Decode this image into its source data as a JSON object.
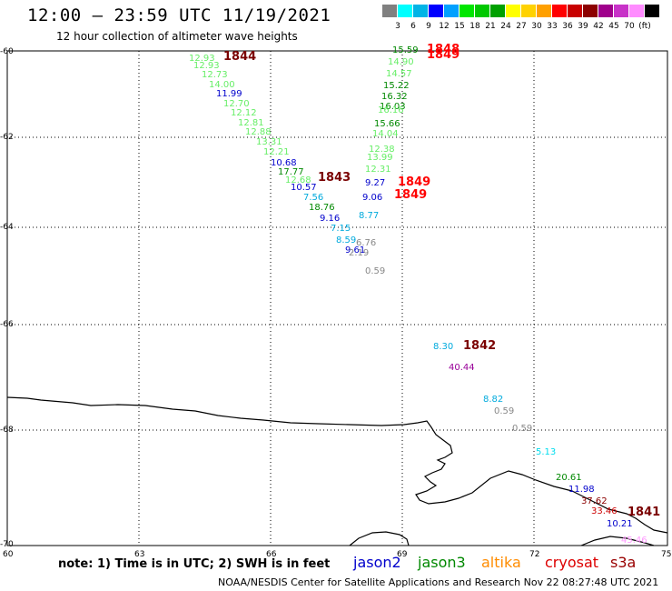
{
  "header": {
    "title": "12:00 — 23:59 UTC 11/19/2021",
    "subtitle": "12 hour collection of altimeter wave heights"
  },
  "colorbar": {
    "colors": [
      "#808080",
      "#00ffff",
      "#00b4e6",
      "#0000ff",
      "#00a0ff",
      "#00e600",
      "#00c800",
      "#00a000",
      "#ffff00",
      "#ffd200",
      "#ffa000",
      "#ff0000",
      "#c80000",
      "#8c0000",
      "#a0008c",
      "#c832c8",
      "#ff8cff",
      "#000000"
    ],
    "labels": [
      "3",
      "6",
      "9",
      "12",
      "15",
      "18",
      "21",
      "24",
      "27",
      "30",
      "33",
      "36",
      "39",
      "42",
      "45",
      "70",
      "(ft)"
    ]
  },
  "axes": {
    "lat_labels": [
      "-60",
      "-62",
      "-64",
      "-66",
      "-68",
      "-70"
    ],
    "lon_labels": [
      "60",
      "63",
      "66",
      "69",
      "72",
      "75"
    ]
  },
  "orbits": [
    {
      "label": "1844",
      "color": "#7a0000"
    },
    {
      "label": "1843",
      "color": "#7a0000"
    },
    {
      "label": "1848",
      "color": "#ff0000"
    },
    {
      "label": "1849",
      "color": "#ff0000"
    },
    {
      "label": "1849",
      "color": "#ff0000"
    },
    {
      "label": "1849",
      "color": "#ff0000"
    },
    {
      "label": "1842",
      "color": "#7a0000"
    },
    {
      "label": "1841",
      "color": "#7a0000"
    }
  ],
  "values": [
    {
      "t": "12.93",
      "c": "#66ee66"
    },
    {
      "t": "12.93",
      "c": "#66ee66"
    },
    {
      "t": "12.73",
      "c": "#66ee66"
    },
    {
      "t": "14.00",
      "c": "#66ee66"
    },
    {
      "t": "11.99",
      "c": "#0000cc"
    },
    {
      "t": "12.70",
      "c": "#66ee66"
    },
    {
      "t": "12.12",
      "c": "#66ee66"
    },
    {
      "t": "12.81",
      "c": "#66ee66"
    },
    {
      "t": "12.88",
      "c": "#66ee66"
    },
    {
      "t": "13.31",
      "c": "#66ee66"
    },
    {
      "t": "12.21",
      "c": "#66ee66"
    },
    {
      "t": "10.68",
      "c": "#0000cc"
    },
    {
      "t": "17.77",
      "c": "#008800"
    },
    {
      "t": "12.68",
      "c": "#66ee66"
    },
    {
      "t": "10.57",
      "c": "#0000cc"
    },
    {
      "t": "7.56",
      "c": "#00aadd"
    },
    {
      "t": "18.76",
      "c": "#008800"
    },
    {
      "t": "9.16",
      "c": "#0000cc"
    },
    {
      "t": "7.15",
      "c": "#00aadd"
    },
    {
      "t": "8.59",
      "c": "#00aadd"
    },
    {
      "t": "6.76",
      "c": "#888888"
    },
    {
      "t": "9.61",
      "c": "#0000cc"
    },
    {
      "t": "2.19",
      "c": "#888888"
    },
    {
      "t": "0.59",
      "c": "#888888"
    },
    {
      "t": "15.59",
      "c": "#008800"
    },
    {
      "t": "14.90",
      "c": "#66ee66"
    },
    {
      "t": "14.57",
      "c": "#66ee66"
    },
    {
      "t": "15.22",
      "c": "#008800"
    },
    {
      "t": "16.32",
      "c": "#008800"
    },
    {
      "t": "16.03",
      "c": "#008800"
    },
    {
      "t": "16.16",
      "c": "#66ee66"
    },
    {
      "t": "15.66",
      "c": "#008800"
    },
    {
      "t": "14.04",
      "c": "#66ee66"
    },
    {
      "t": "12.38",
      "c": "#66ee66"
    },
    {
      "t": "13.99",
      "c": "#66ee66"
    },
    {
      "t": "12.31",
      "c": "#66ee66"
    },
    {
      "t": "9.27",
      "c": "#0000cc"
    },
    {
      "t": "9.06",
      "c": "#0000cc"
    },
    {
      "t": "8.77",
      "c": "#00aadd"
    },
    {
      "t": "8.30",
      "c": "#00aadd"
    },
    {
      "t": "40.44",
      "c": "#990099"
    },
    {
      "t": "8.82",
      "c": "#00aadd"
    },
    {
      "t": "0.59",
      "c": "#888888"
    },
    {
      "t": "0.59",
      "c": "#888888"
    },
    {
      "t": "5.13",
      "c": "#00ddee"
    },
    {
      "t": "20.61",
      "c": "#008800"
    },
    {
      "t": "11.98",
      "c": "#0000cc"
    },
    {
      "t": "37.62",
      "c": "#8c0000"
    },
    {
      "t": "33.46",
      "c": "#cc0000"
    },
    {
      "t": "10.21",
      "c": "#0000cc"
    },
    {
      "t": "45.46",
      "c": "#ff99ff"
    }
  ],
  "footer": {
    "note": "note:  1) Time is in UTC;  2) SWH is in feet",
    "satellites": [
      {
        "name": "jason2",
        "color": "#0000cc"
      },
      {
        "name": "jason3",
        "color": "#008800"
      },
      {
        "name": "altika",
        "color": "#ff8c00"
      },
      {
        "name": "cryosat",
        "color": "#dd0000"
      },
      {
        "name": "s3a",
        "color": "#990000"
      }
    ],
    "credit": "NOAA/NESDIS Center for Satellite Applications and Research     Nov 22 08:27:48 UTC 2021"
  }
}
